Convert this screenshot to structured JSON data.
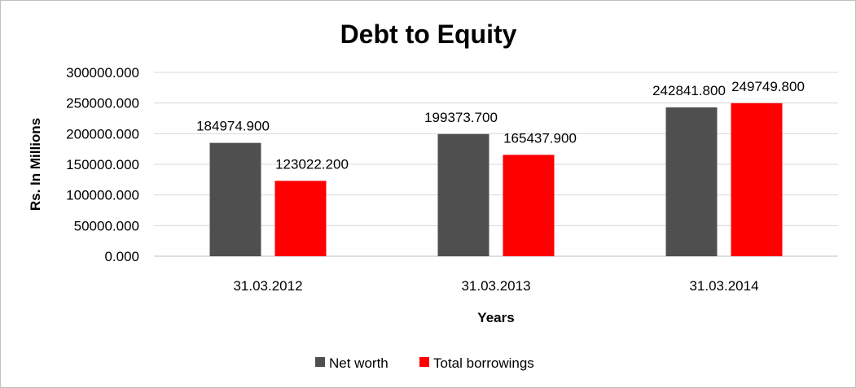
{
  "chart_data": {
    "type": "bar",
    "title": "Debt to Equity",
    "xlabel": "Years",
    "ylabel": "Rs. In Millions",
    "categories": [
      "31.03.2012",
      "31.03.2013",
      "31.03.2014"
    ],
    "series": [
      {
        "name": "Net worth",
        "color": "#4f4f4f",
        "values": [
          184974.9,
          199373.7,
          242841.8
        ],
        "labels": [
          "184974.900",
          "199373.700",
          "242841.800"
        ]
      },
      {
        "name": "Total borrowings",
        "color": "#ff0000",
        "values": [
          123022.2,
          165437.9,
          249749.8
        ],
        "labels": [
          "123022.200",
          "165437.900",
          "249749.800"
        ]
      }
    ],
    "ylim": [
      0,
      300000
    ],
    "yticks": [
      0,
      50000,
      100000,
      150000,
      200000,
      250000,
      300000
    ],
    "ytick_labels": [
      "0.000",
      "50000.000",
      "100000.000",
      "150000.000",
      "200000.000",
      "250000.000",
      "300000.000"
    ],
    "grid": true,
    "legend_position": "bottom"
  }
}
